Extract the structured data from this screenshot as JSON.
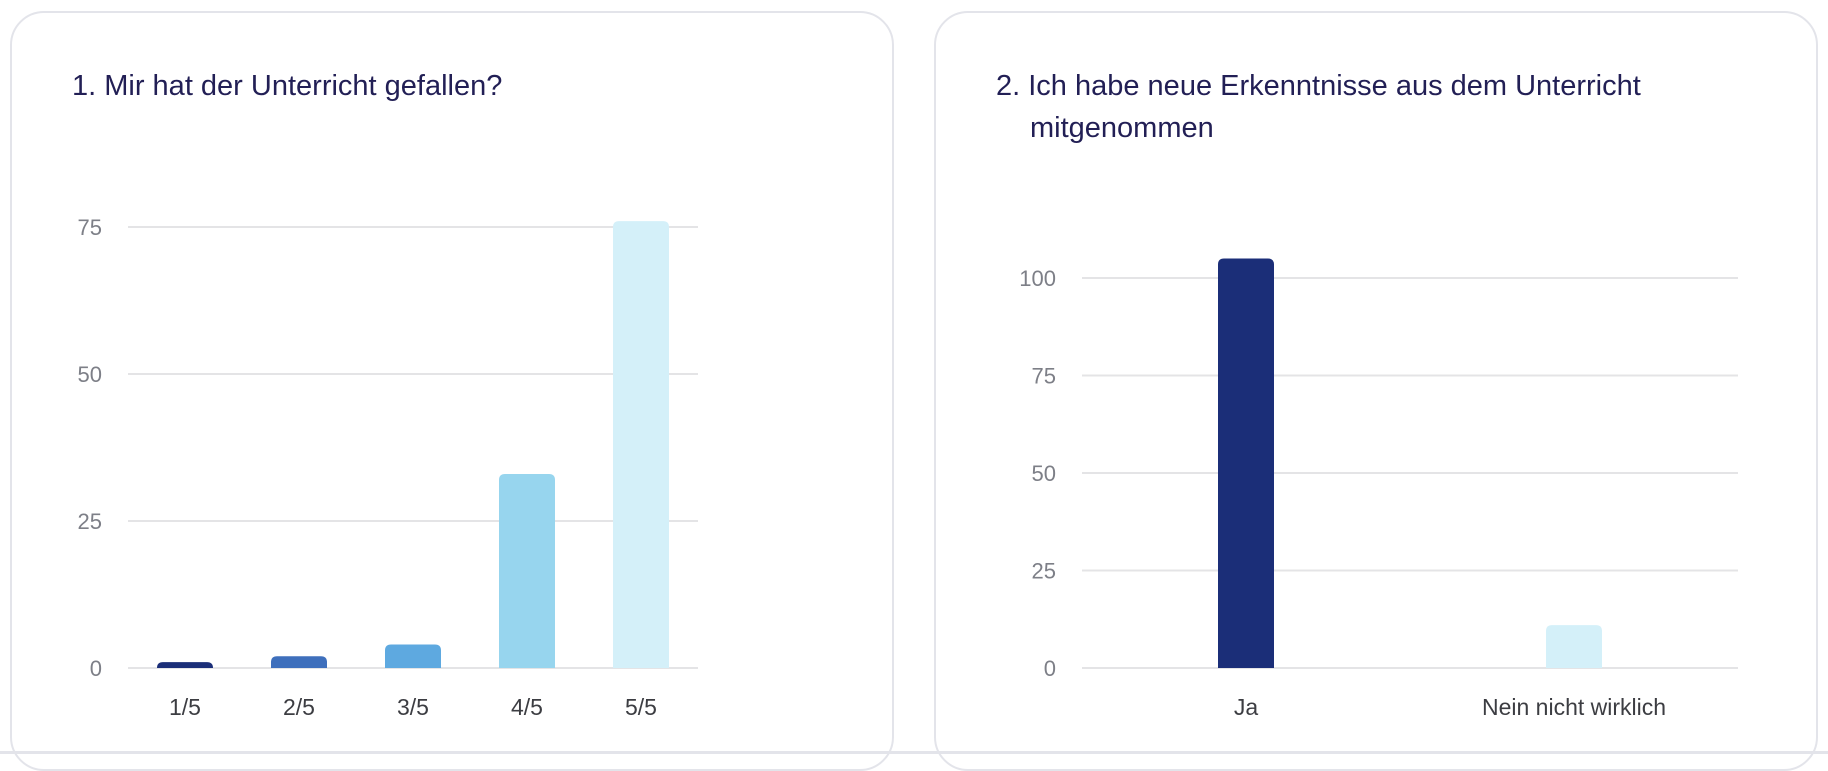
{
  "cards": [
    {
      "title": "1. Mir hat der Unterricht gefallen?",
      "chart_data": {
        "type": "bar",
        "title": "1. Mir hat der Unterricht gefallen?",
        "categories": [
          "1/5",
          "2/5",
          "3/5",
          "4/5",
          "5/5"
        ],
        "values": [
          1,
          2,
          4,
          33,
          76
        ],
        "colors": [
          "#1b2e78",
          "#3e6fbc",
          "#5ea9e0",
          "#97d5ee",
          "#d4f0f9"
        ],
        "xlabel": "",
        "ylabel": "",
        "ylim": [
          0,
          75
        ],
        "yticks": [
          0,
          25,
          50,
          75
        ],
        "grid": true,
        "legend": "none"
      }
    },
    {
      "title": "2. Ich habe neue Erkenntnisse aus dem Unterricht mitgenommen",
      "chart_data": {
        "type": "bar",
        "title": "2. Ich habe neue Erkenntnisse aus dem Unterricht mitgenommen",
        "categories": [
          "Ja",
          "Nein nicht wirklich"
        ],
        "values": [
          105,
          11
        ],
        "colors": [
          "#1b2e78",
          "#d4f0f9"
        ],
        "xlabel": "",
        "ylabel": "",
        "ylim": [
          0,
          100
        ],
        "yticks": [
          0,
          25,
          50,
          75,
          100
        ],
        "grid": true,
        "legend": "none"
      }
    }
  ]
}
